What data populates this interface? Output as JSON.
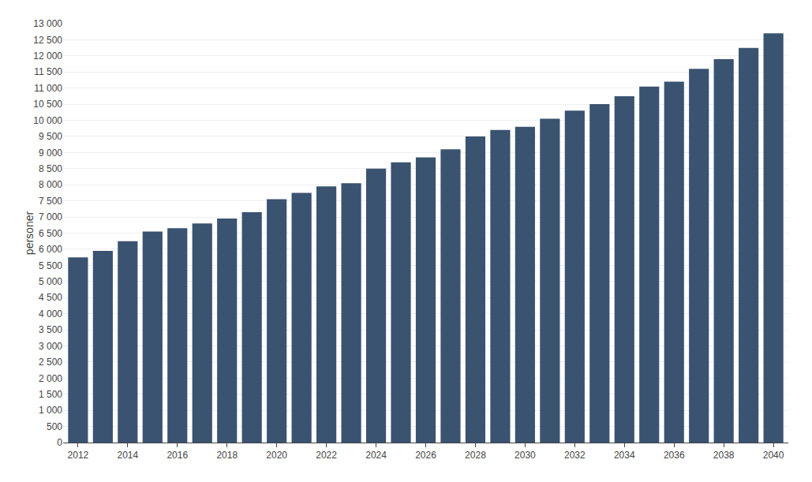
{
  "chart_data": {
    "type": "bar",
    "y_label": "personer",
    "x": [
      2012,
      2013,
      2014,
      2015,
      2016,
      2017,
      2018,
      2019,
      2020,
      2021,
      2022,
      2023,
      2024,
      2025,
      2026,
      2027,
      2028,
      2029,
      2030,
      2031,
      2032,
      2033,
      2034,
      2035,
      2036,
      2037,
      2038,
      2039,
      2040
    ],
    "values": [
      5750,
      5950,
      6250,
      6550,
      6650,
      6800,
      6950,
      7150,
      7550,
      7750,
      7950,
      8050,
      8500,
      8700,
      8850,
      9100,
      9500,
      9700,
      9800,
      10050,
      10300,
      10500,
      10750,
      11050,
      11200,
      11600,
      11900,
      12250,
      12700
    ],
    "color": "#3a5370",
    "xlim": [
      2011.4,
      2040.6
    ],
    "xticks": [
      2012,
      2014,
      2016,
      2018,
      2020,
      2022,
      2024,
      2026,
      2028,
      2030,
      2032,
      2034,
      2036,
      2038,
      2040
    ],
    "ylim": [
      0,
      13000
    ],
    "yticks": [
      0,
      500,
      {
        "value": 1000,
        "label": "1 000"
      },
      {
        "value": 1500,
        "label": "1 500"
      },
      {
        "value": 2000,
        "label": "2 000"
      },
      {
        "value": 2500,
        "label": "2 500"
      },
      {
        "value": 3000,
        "label": "3 000"
      },
      {
        "value": 3500,
        "label": "3 500"
      },
      {
        "value": 4000,
        "label": "4 000"
      },
      {
        "value": 4500,
        "label": "4 500"
      },
      {
        "value": 5000,
        "label": "5 000"
      },
      {
        "value": 5500,
        "label": "5 500"
      },
      {
        "value": 6000,
        "label": "6 000"
      },
      {
        "value": 6500,
        "label": "6 500"
      },
      {
        "value": 7000,
        "label": "7 000"
      },
      {
        "value": 7500,
        "label": "7 500"
      },
      {
        "value": 8000,
        "label": "8 000"
      },
      {
        "value": 8500,
        "label": "8 500"
      },
      {
        "value": 9000,
        "label": "9 000"
      },
      {
        "value": 9500,
        "label": "9 500"
      },
      {
        "value": 10000,
        "label": "10 000"
      },
      {
        "value": 10500,
        "label": "10 500"
      },
      {
        "value": 11000,
        "label": "11 000"
      },
      {
        "value": 11500,
        "label": "11 500"
      },
      {
        "value": 12000,
        "label": "12 000"
      },
      {
        "value": 12500,
        "label": "12 500"
      },
      {
        "value": 13000,
        "label": "13 000"
      }
    ],
    "grid": true
  }
}
